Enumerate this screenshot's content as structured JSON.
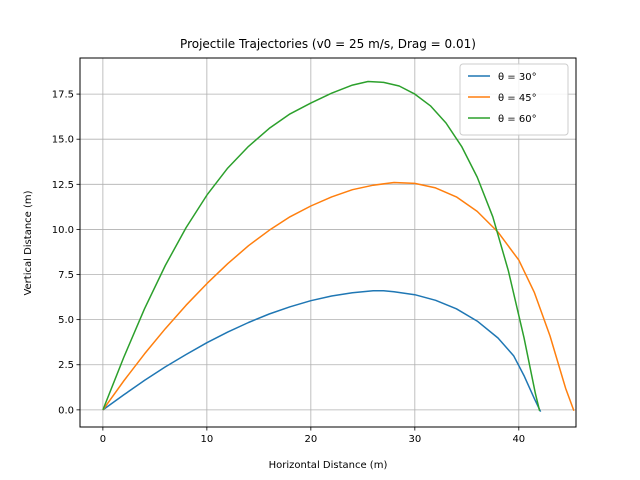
{
  "chart_data": {
    "type": "line",
    "title": "Projectile Trajectories (v0 = 25 m/s, Drag = 0.01)",
    "xlabel": "Horizontal Distance (m)",
    "ylabel": "Vertical Distance (m)",
    "xlim": [
      -2.2,
      45.5
    ],
    "ylim": [
      -0.95,
      19.5
    ],
    "xticks": [
      0,
      10,
      20,
      30,
      40
    ],
    "xtick_labels": [
      "0",
      "10",
      "20",
      "30",
      "40"
    ],
    "yticks": [
      0,
      2.5,
      5,
      7.5,
      10,
      12.5,
      15,
      17.5
    ],
    "ytick_labels": [
      "0.0",
      "2.5",
      "5.0",
      "7.5",
      "10.0",
      "12.5",
      "15.0",
      "17.5"
    ],
    "grid": true,
    "legend_position": "top-right",
    "series": [
      {
        "name": "θ = 30°",
        "color": "#1f77b4",
        "points": [
          [
            0,
            0
          ],
          [
            2,
            0.83
          ],
          [
            4,
            1.63
          ],
          [
            6,
            2.38
          ],
          [
            8,
            3.07
          ],
          [
            10,
            3.72
          ],
          [
            12,
            4.31
          ],
          [
            14,
            4.84
          ],
          [
            16,
            5.31
          ],
          [
            18,
            5.71
          ],
          [
            20,
            6.05
          ],
          [
            22,
            6.31
          ],
          [
            24,
            6.49
          ],
          [
            26,
            6.6
          ],
          [
            27,
            6.6
          ],
          [
            28,
            6.55
          ],
          [
            30,
            6.38
          ],
          [
            32,
            6.07
          ],
          [
            34,
            5.6
          ],
          [
            36,
            4.92
          ],
          [
            38,
            3.98
          ],
          [
            39.5,
            3.0
          ],
          [
            40.5,
            1.9
          ],
          [
            41.5,
            0.62
          ],
          [
            42.1,
            -0.1
          ]
        ]
      },
      {
        "name": "θ = 45°",
        "color": "#ff7f0e",
        "points": [
          [
            0,
            0
          ],
          [
            2,
            1.6
          ],
          [
            4,
            3.1
          ],
          [
            6,
            4.5
          ],
          [
            8,
            5.8
          ],
          [
            10,
            7.0
          ],
          [
            12,
            8.1
          ],
          [
            14,
            9.1
          ],
          [
            16,
            9.95
          ],
          [
            18,
            10.7
          ],
          [
            20,
            11.3
          ],
          [
            22,
            11.8
          ],
          [
            24,
            12.2
          ],
          [
            26,
            12.45
          ],
          [
            28,
            12.6
          ],
          [
            30,
            12.55
          ],
          [
            32,
            12.3
          ],
          [
            34,
            11.8
          ],
          [
            36,
            11.0
          ],
          [
            38,
            9.85
          ],
          [
            40,
            8.3
          ],
          [
            41.5,
            6.5
          ],
          [
            43,
            4.1
          ],
          [
            44.5,
            1.2
          ],
          [
            45.3,
            -0.05
          ]
        ]
      },
      {
        "name": "θ = 60°",
        "color": "#2ca02c",
        "points": [
          [
            0,
            0
          ],
          [
            2,
            2.9
          ],
          [
            4,
            5.6
          ],
          [
            6,
            8.0
          ],
          [
            8,
            10.1
          ],
          [
            10,
            11.9
          ],
          [
            12,
            13.4
          ],
          [
            14,
            14.6
          ],
          [
            16,
            15.6
          ],
          [
            18,
            16.4
          ],
          [
            20,
            17.0
          ],
          [
            22,
            17.55
          ],
          [
            24,
            18.0
          ],
          [
            25.5,
            18.2
          ],
          [
            27,
            18.15
          ],
          [
            28.5,
            17.95
          ],
          [
            30,
            17.5
          ],
          [
            31.5,
            16.85
          ],
          [
            33,
            15.9
          ],
          [
            34.5,
            14.6
          ],
          [
            36,
            12.9
          ],
          [
            37.5,
            10.7
          ],
          [
            39,
            7.7
          ],
          [
            40.5,
            4.0
          ],
          [
            41.6,
            0.9
          ],
          [
            42,
            -0.05
          ]
        ]
      }
    ]
  }
}
